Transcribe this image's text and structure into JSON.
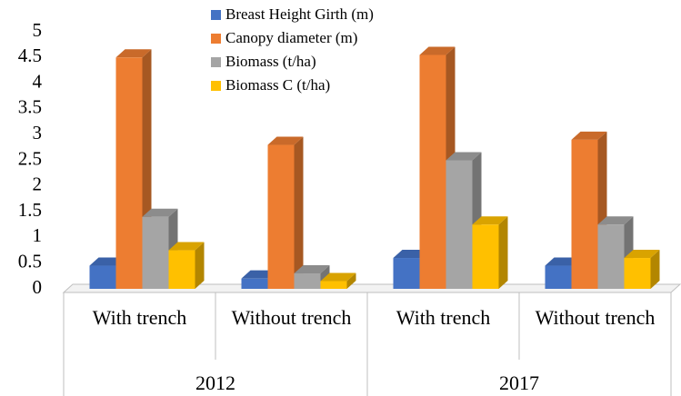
{
  "chart_data": {
    "type": "bar3d",
    "categories": [
      "With trench",
      "Without trench",
      "With trench",
      "Without trench"
    ],
    "category_groups": [
      "2012",
      "2017"
    ],
    "series": [
      {
        "name": "Breast Height Girth (m)",
        "color": "#4472c4",
        "values": [
          0.45,
          0.2,
          0.6,
          0.45
        ]
      },
      {
        "name": "Canopy diameter (m)",
        "color": "#ed7d31",
        "values": [
          4.5,
          2.8,
          4.55,
          2.9
        ]
      },
      {
        "name": "Biomass (t/ha)",
        "color": "#a5a5a5",
        "values": [
          1.4,
          0.3,
          2.5,
          1.25
        ]
      },
      {
        "name": "Biomass C (t/ha)",
        "color": "#ffc000",
        "values": [
          0.75,
          0.15,
          1.25,
          0.6
        ]
      }
    ],
    "ylim": [
      0,
      5
    ],
    "yticks": [
      0,
      0.5,
      1,
      1.5,
      2,
      2.5,
      3,
      3.5,
      4,
      4.5,
      5
    ],
    "legend": "top"
  }
}
